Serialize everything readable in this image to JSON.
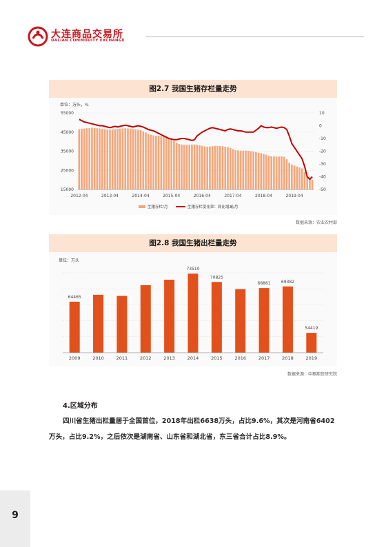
{
  "header": {
    "logo_cn": "大连商品交易所",
    "logo_en": "DALIAN COMMODITY EXCHANGE"
  },
  "chart1": {
    "title": "图2.7 我国生猪存栏量走势",
    "unit": "单位：万头，%",
    "source": "数据来源：农业农村部"
  },
  "chart2": {
    "title": "图2.8 我国生猪出栏量走势",
    "unit": "单位：万头",
    "source": "数据来源：中粮期货研究院"
  },
  "chart_data": [
    {
      "type": "bar+line",
      "title": "图2.7 我国生猪存栏量走势",
      "unit_label": "单位：万头，%",
      "x_tick_labels": [
        "2012-04",
        "2013-04",
        "2014-04",
        "2015-04",
        "2016-04",
        "2017-04",
        "2018-04",
        "2019-04"
      ],
      "y_left_ticks": [
        15000,
        25000,
        35000,
        45000,
        55000
      ],
      "y_right_ticks": [
        10,
        0,
        -10,
        -20,
        -30,
        -40,
        -50
      ],
      "ylim_left": [
        15000,
        55000
      ],
      "ylim_right": [
        -50,
        10
      ],
      "legend_position": "bottom",
      "colors": {
        "bar": "#f5a67a",
        "line": "#c00000"
      },
      "series": [
        {
          "name": "生猪存栏/月",
          "axis": "left",
          "values": [
            46500,
            46700,
            46800,
            47000,
            47100,
            47300,
            47200,
            47000,
            46900,
            46700,
            46500,
            46400,
            46300,
            46400,
            46500,
            46700,
            46800,
            46900,
            47000,
            46900,
            46800,
            46600,
            46400,
            46300,
            46000,
            45400,
            44800,
            44100,
            43600,
            43300,
            43100,
            43000,
            42900,
            42700,
            42300,
            41700,
            41000,
            40300,
            39500,
            38800,
            38500,
            38300,
            38300,
            38400,
            38500,
            38500,
            38400,
            38100,
            37800,
            37500,
            37400,
            37500,
            37600,
            37800,
            37800,
            37700,
            37600,
            37400,
            37200,
            36700,
            36100,
            35600,
            35400,
            35300,
            35300,
            35300,
            35200,
            35000,
            34800,
            34500,
            34200,
            34000,
            33600,
            33100,
            32700,
            32400,
            32300,
            32200,
            32200,
            32300,
            32100,
            30800,
            29000,
            28000,
            27500,
            27000,
            26500,
            26000,
            24000,
            21500,
            20500,
            20000
          ]
        },
        {
          "name": "生猪存栏变化率：同比增减/月",
          "axis": "right",
          "values": [
            5,
            4,
            3,
            2.5,
            2,
            1.5,
            1,
            0.5,
            0,
            0,
            -0.5,
            -1,
            -1.5,
            -1,
            -0.5,
            -1,
            -0.5,
            0,
            0.5,
            0,
            -0.5,
            -1,
            -0.5,
            0,
            -0.5,
            -1,
            -2,
            -3,
            -3.5,
            -4,
            -5,
            -6,
            -7,
            -8,
            -9,
            -10,
            -10.5,
            -11,
            -11,
            -10.5,
            -10,
            -10,
            -10.5,
            -11,
            -11.5,
            -11,
            -8,
            -6.5,
            -5,
            -4,
            -3,
            -2,
            -1.5,
            -2,
            -2.5,
            -3,
            -3.5,
            -4,
            -3,
            -2.5,
            -3,
            -3.5,
            -4,
            -4,
            -4.5,
            -5,
            -5,
            -5,
            -5,
            -3.5,
            -2,
            0,
            -1,
            -1.5,
            -1.5,
            -1,
            -1.5,
            -2,
            -1.5,
            -1,
            -1.5,
            -3,
            -8,
            -14,
            -17,
            -20,
            -23,
            -26,
            -32,
            -40,
            -42,
            -40
          ]
        }
      ]
    },
    {
      "type": "bar",
      "title": "图2.8 我国生猪出栏量走势",
      "unit_label": "单位：万头",
      "categories": [
        "2009",
        "2010",
        "2011",
        "2012",
        "2013",
        "2014",
        "2015",
        "2016",
        "2017",
        "2018",
        "2019"
      ],
      "values": [
        64465,
        66686,
        66326,
        69789,
        71557,
        73510,
        70825,
        68502,
        68861,
        69382,
        54419
      ],
      "data_labels": {
        "0": "64465",
        "5": "73510",
        "6": "70825",
        "8": "68861",
        "9": "69382",
        "10": "54419"
      },
      "ylim": [
        48000,
        76000
      ],
      "colors": {
        "bar": "#e2501c"
      }
    }
  ],
  "section": {
    "heading": "4.区域分布",
    "paragraph": "四川省生猪出栏量居于全国首位，2018年出栏6638万头，占比9.6%，其次是河南省6402万头，占比9.2%，之后依次是湖南省、山东省和湖北省，东三省合计占比8.9%。"
  },
  "page": {
    "number": "9"
  }
}
